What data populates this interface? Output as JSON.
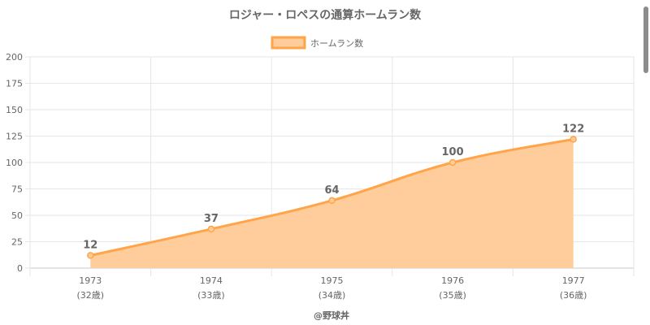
{
  "chart_data": {
    "type": "area",
    "title": "ロジャー・ロペスの通算ホームラン数",
    "legend": {
      "label": "ホームラン数",
      "position": "top"
    },
    "categories": [
      "1973",
      "1974",
      "1975",
      "1976",
      "1977"
    ],
    "sublabels": [
      "(32歳)",
      "(33歳)",
      "(34歳)",
      "(35歳)",
      "(36歳)"
    ],
    "series": [
      {
        "name": "ホームラン数",
        "values": [
          12,
          37,
          64,
          100,
          122
        ]
      }
    ],
    "ylim": [
      0,
      200
    ],
    "yticks": [
      0,
      25,
      50,
      75,
      100,
      125,
      150,
      175,
      200
    ],
    "grid": true,
    "colors": {
      "line": "#ffa449",
      "fill": "#ffcd9b",
      "grid": "#e6e6e6",
      "axis": "#c8c8c8"
    }
  },
  "credit": "@野球丼"
}
